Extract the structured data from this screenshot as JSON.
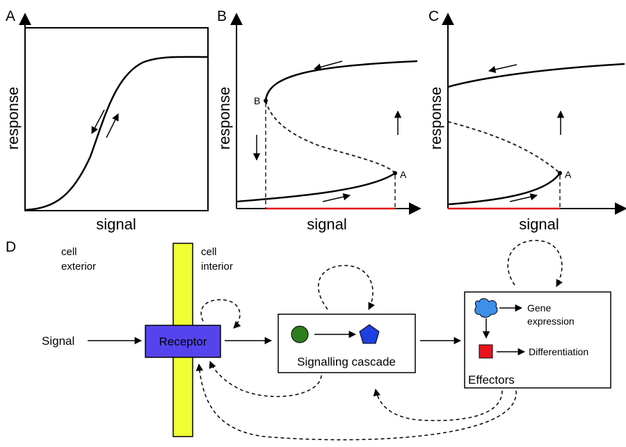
{
  "panels": {
    "A": {
      "letter": "A",
      "xlabel": "signal",
      "ylabel": "response"
    },
    "B": {
      "letter": "B",
      "xlabel": "signal",
      "ylabel": "response",
      "point_upper": "B",
      "point_lower": "A"
    },
    "C": {
      "letter": "C",
      "xlabel": "signal",
      "ylabel": "response",
      "point_lower": "A"
    }
  },
  "diagram": {
    "letter": "D",
    "exterior_line1": "cell",
    "exterior_line2": "exterior",
    "interior_line1": "cell",
    "interior_line2": "interior",
    "signal": "Signal",
    "receptor": "Receptor",
    "cascade": "Signalling cascade",
    "gene_line1": "Gene",
    "gene_line2": "expression",
    "differentiation": "Differentiation",
    "effectors": "Effectors"
  },
  "colors": {
    "membrane": "#f0ff33",
    "receptor": "#5544ee",
    "cascade_circle": "#2e7d1e",
    "cascade_pentagon": "#1f3fe0",
    "effector_cloud": "#3d8fe8",
    "effector_square": "#e8141a",
    "red_axis": "#e01010"
  }
}
